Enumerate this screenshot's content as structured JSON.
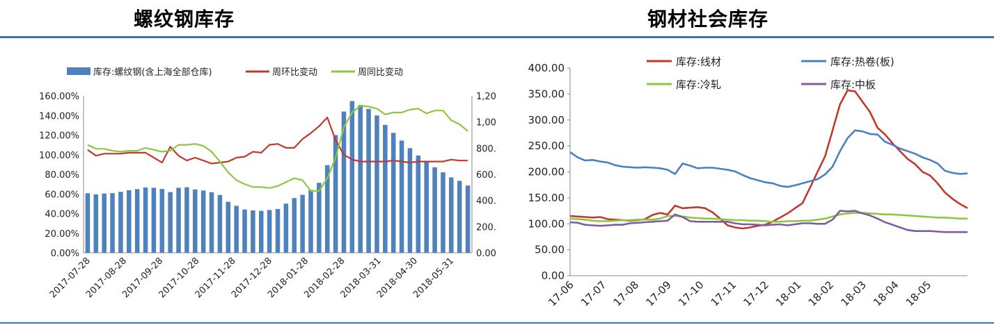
{
  "titles": {
    "left": "螺纹钢库存",
    "right": "钢材社会库存"
  },
  "colors": {
    "bar": "#4f81bd",
    "red": "#c0392b",
    "green": "#8dc63f",
    "blue": "#4a7fc1",
    "purple": "#7e5ba3",
    "rule": "#3f6fb5"
  },
  "chart_data": [
    {
      "type": "bar",
      "legend_position": "top",
      "series": [
        {
          "name": "库存:螺纹钢(含上海全部仓库)",
          "kind": "bar",
          "axis": "right",
          "values": [
            455,
            447,
            453,
            456,
            466,
            478,
            487,
            499,
            497,
            488,
            464,
            497,
            501,
            484,
            476,
            463,
            442,
            390,
            359,
            331,
            324,
            321,
            327,
            335,
            376,
            418,
            443,
            480,
            535,
            670,
            900,
            1080,
            1160,
            1130,
            1100,
            1050,
            978,
            917,
            858,
            800,
            744,
            700,
            654,
            615,
            576,
            550,
            514
          ]
        },
        {
          "name": "周环比变动",
          "kind": "line",
          "axis": "left",
          "values": [
            105,
            99,
            101,
            101,
            101,
            102,
            102,
            102,
            97,
            92,
            108,
            99,
            94,
            97,
            94,
            91,
            92,
            93,
            97,
            98,
            103,
            102,
            110,
            111,
            107,
            107,
            116,
            122,
            129,
            138,
            115,
            100,
            95,
            93,
            93,
            93,
            93,
            94,
            93,
            92,
            93,
            93,
            93,
            93,
            95,
            94,
            94
          ]
        },
        {
          "name": "周同比变动",
          "kind": "line",
          "axis": "left",
          "values": [
            110,
            106,
            106,
            104,
            103,
            104,
            104,
            107,
            105,
            103,
            104,
            110,
            110,
            111,
            109,
            103,
            93,
            82,
            74,
            70,
            67,
            67,
            66,
            68,
            72,
            76,
            74,
            63,
            63,
            76,
            97,
            128,
            143,
            150,
            149,
            147,
            141,
            143,
            143,
            146,
            147,
            142,
            145,
            145,
            135,
            131,
            124
          ]
        }
      ],
      "x_tick_labels": [
        "2017-07-28",
        "2017-08-28",
        "2017-09-28",
        "2017-10-28",
        "2017-11-28",
        "2017-12-28",
        "2018-01-28",
        "2018-02-28",
        "2018-03-31",
        "2018-04-30",
        "2018-05-31"
      ],
      "x_tick_index": [
        0,
        4.4,
        8.8,
        13.2,
        17.6,
        22,
        26.4,
        30.8,
        35.2,
        39.6,
        44
      ],
      "y_left": {
        "range": [
          0,
          160
        ],
        "step": 20,
        "format": "percent2"
      },
      "y_right": {
        "range": [
          0,
          1200
        ],
        "step": 200,
        "format": "comma2"
      },
      "grid": false
    },
    {
      "type": "line",
      "legend_position": "top",
      "series": [
        {
          "name": "库存:线材",
          "color_key": "red",
          "values": [
            115,
            114,
            113,
            112,
            113,
            109,
            108,
            107,
            106,
            107,
            109,
            117,
            121,
            118,
            135,
            130,
            131,
            132,
            130,
            122,
            110,
            97,
            93,
            91,
            93,
            96,
            98,
            104,
            112,
            120,
            130,
            140,
            170,
            200,
            230,
            280,
            330,
            357,
            355,
            335,
            315,
            285,
            272,
            255,
            240,
            225,
            215,
            200,
            193,
            178,
            160,
            148,
            138,
            130
          ]
        },
        {
          "name": "库存:热卷(板)",
          "color_key": "blue",
          "values": [
            238,
            228,
            222,
            223,
            220,
            218,
            213,
            210,
            209,
            208,
            209,
            208,
            207,
            204,
            196,
            216,
            212,
            207,
            208,
            208,
            206,
            204,
            201,
            194,
            188,
            184,
            180,
            178,
            173,
            171,
            174,
            178,
            182,
            186,
            195,
            210,
            240,
            265,
            280,
            278,
            273,
            272,
            258,
            252,
            245,
            240,
            235,
            228,
            223,
            216,
            202,
            198,
            196,
            197
          ]
        },
        {
          "name": "库存:冷轧",
          "color_key": "green",
          "values": [
            110,
            109,
            108,
            106,
            105,
            105,
            106,
            107,
            107,
            108,
            108,
            108,
            110,
            115,
            115,
            114,
            112,
            111,
            110,
            110,
            109,
            108,
            107,
            107,
            106,
            106,
            105,
            104,
            104,
            105,
            105,
            106,
            106,
            108,
            110,
            114,
            118,
            120,
            121,
            121,
            120,
            119,
            118,
            118,
            117,
            116,
            115,
            114,
            113,
            112,
            112,
            111,
            110,
            110
          ]
        },
        {
          "name": "库存:中板",
          "color_key": "purple",
          "values": [
            103,
            102,
            98,
            97,
            96,
            97,
            98,
            98,
            101,
            102,
            103,
            104,
            105,
            106,
            118,
            113,
            105,
            104,
            104,
            104,
            104,
            104,
            101,
            99,
            99,
            98,
            97,
            98,
            99,
            97,
            99,
            101,
            101,
            100,
            100,
            108,
            125,
            124,
            125,
            120,
            116,
            110,
            103,
            98,
            93,
            88,
            86,
            86,
            86,
            85,
            84,
            84,
            84,
            84
          ]
        }
      ],
      "x_tick_labels": [
        "17-06",
        "17-07",
        "17-08",
        "17-09",
        "17-10",
        "17-11",
        "17-12",
        "18-01",
        "18-02",
        "18-03",
        "18-04",
        "18-05"
      ],
      "x_tick_index": [
        0,
        4.33,
        8.66,
        13,
        17.33,
        21.66,
        26,
        30.33,
        34.66,
        39,
        43.33,
        47.66
      ],
      "y": {
        "range": [
          0,
          400
        ],
        "step": 50,
        "format": "fixed2"
      },
      "grid": false
    }
  ]
}
